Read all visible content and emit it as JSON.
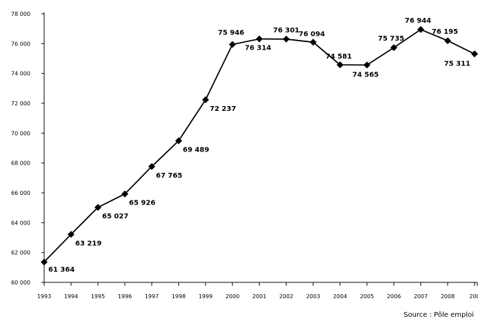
{
  "source_note": "Source : Pôle emploi",
  "chart_data": {
    "type": "line",
    "x": [
      "1993",
      "1994",
      "1995",
      "1996",
      "1997",
      "1998",
      "1999",
      "2000",
      "2001",
      "2002",
      "2003",
      "2004",
      "2005",
      "2006",
      "2007",
      "2008",
      "200"
    ],
    "series": [
      {
        "values": [
          61364,
          63219,
          65027,
          65926,
          67765,
          69489,
          72237,
          75946,
          76314,
          76301,
          76094,
          74581,
          74565,
          75735,
          76944,
          76195,
          75311
        ],
        "data_labels": [
          "61 364",
          "63 219",
          "65 027",
          "65 926",
          "67 765",
          "69 489",
          "72 237",
          "75 946",
          "76 314",
          "76 301",
          "76 094",
          "74 581",
          "74 565",
          "75 735",
          "76 944",
          "76 195",
          "75 311"
        ],
        "color": "#000000",
        "marker": "diamond"
      }
    ],
    "y_ticks": [
      60000,
      62000,
      64000,
      66000,
      68000,
      70000,
      72000,
      74000,
      76000,
      78000
    ],
    "y_tick_labels": [
      "60 000",
      "62 000",
      "64 000",
      "66 000",
      "68 000",
      "70 000",
      "72 000",
      "74 000",
      "76 000",
      "78 000"
    ],
    "ylim": [
      60000,
      78000
    ],
    "grid": false,
    "legend": "none"
  }
}
